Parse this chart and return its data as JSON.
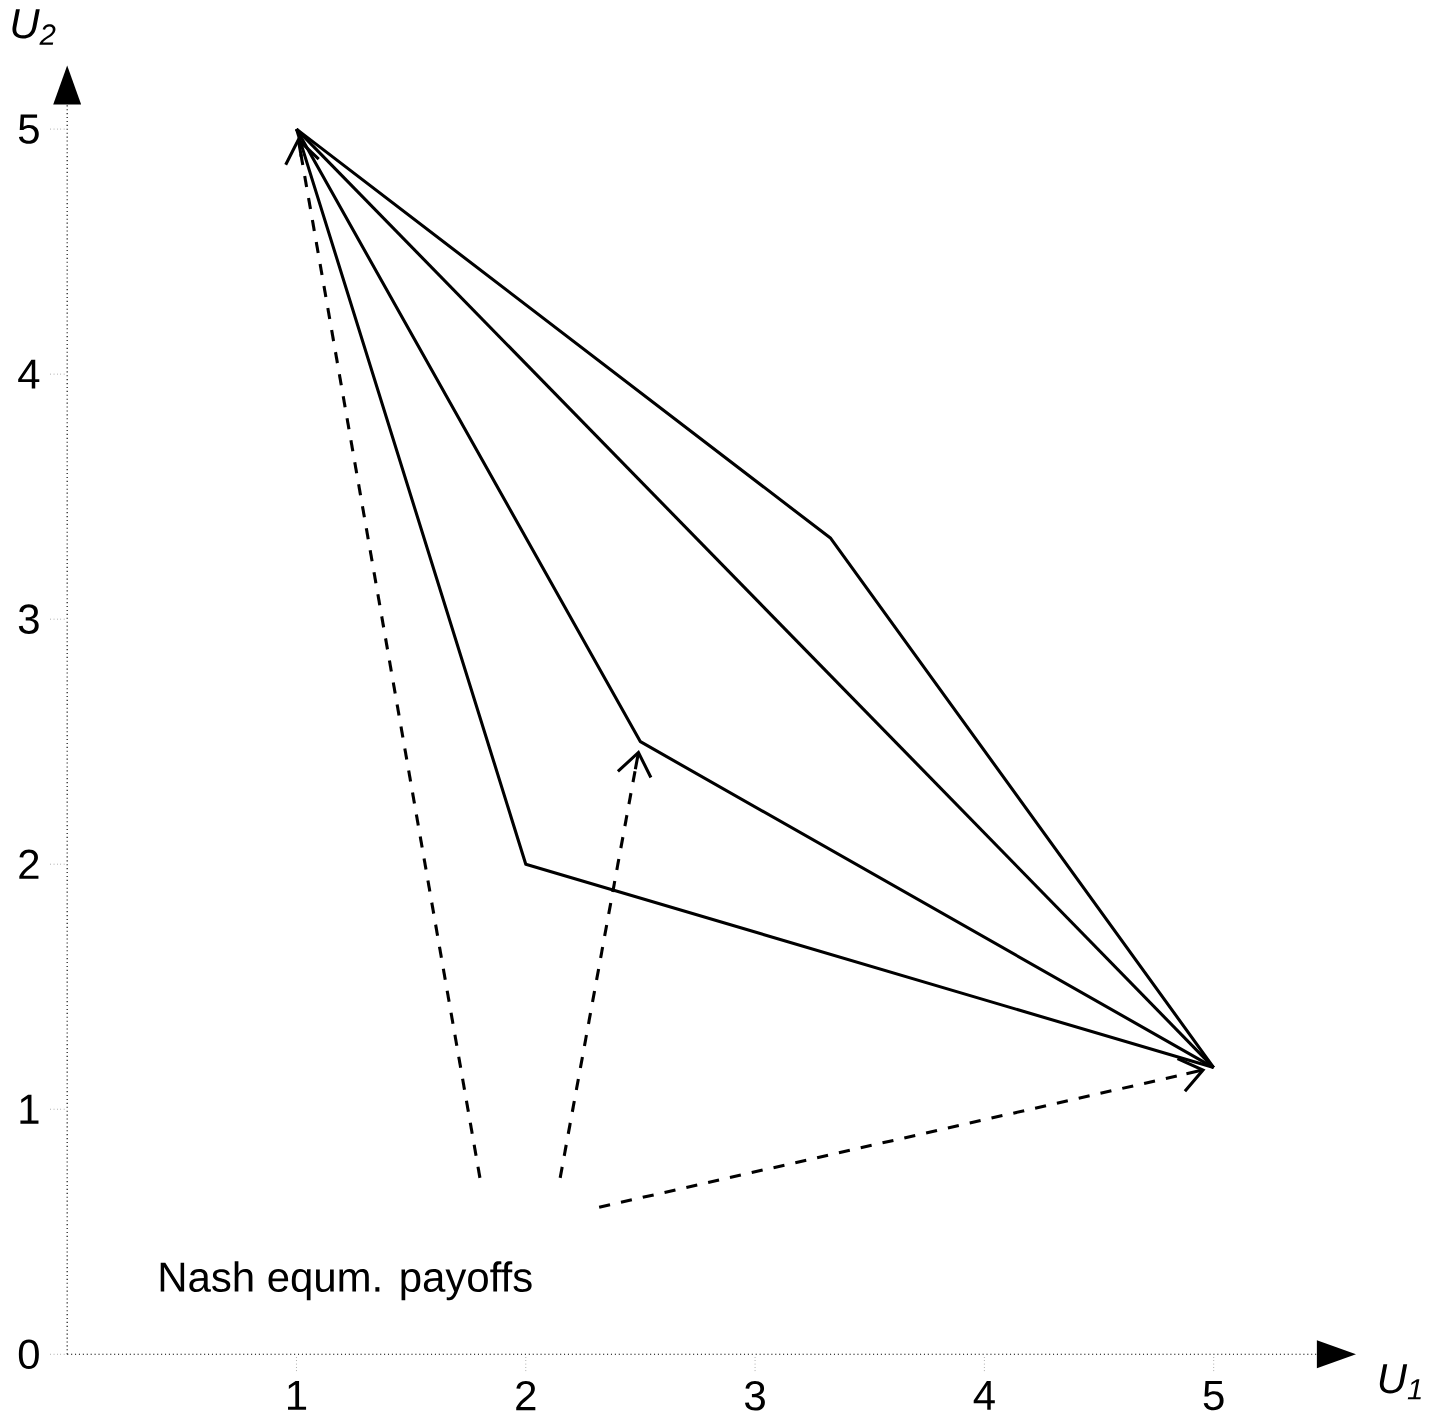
{
  "chart_data": {
    "type": "line",
    "xlabel": "U$_{1}$",
    "ylabel": "U$_{2}$",
    "xlim": [
      0,
      5.45
    ],
    "ylim": [
      0,
      5.1
    ],
    "xticks": [
      1,
      2,
      3,
      4,
      5
    ],
    "yticks": [
      0,
      1,
      2,
      3,
      4,
      5
    ],
    "series": [
      {
        "color": "#000000",
        "x": [
          1,
          2,
          5
        ],
        "values": [
          5,
          2,
          1.17
        ]
      },
      {
        "color": "#000000",
        "x": [
          1,
          2.5,
          5
        ],
        "values": [
          5,
          2.5,
          1.17
        ]
      },
      {
        "color": "#000000",
        "x": [
          1,
          5
        ],
        "values": [
          5,
          1.17
        ]
      },
      {
        "color": "#000000",
        "x": [
          1,
          3.33,
          5
        ],
        "values": [
          5,
          3.33,
          1.17
        ]
      }
    ],
    "annotations": [
      "Nash equm. payoffs"
    ],
    "marker": "none",
    "line_style": "solid"
  }
}
